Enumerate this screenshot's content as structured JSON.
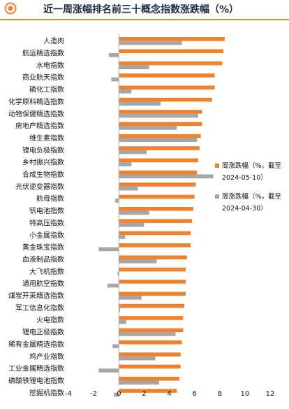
{
  "title": "近一周涨幅排名前三十概念指数涨跌幅（%）",
  "colors": {
    "accent": "#f0822d",
    "series1": "#f0822d",
    "series2": "#a6a6a6"
  },
  "icon": "target-circle-icon",
  "chart_data": {
    "type": "bar",
    "orientation": "horizontal",
    "categories": [
      "人造肉",
      "航运精选指数",
      "水电指数",
      "商业航天指数",
      "磷化工指数",
      "化学原料精选指数",
      "动物保健精选指数",
      "房地产精选指数",
      "维生素指数",
      "锂电负极指数",
      "乡村振兴指数",
      "合成生物指数",
      "光伏逆变器指数",
      "航母指数",
      "钒电池指数",
      "特高压指数",
      "小金属指数",
      "黄金珠宝指数",
      "血液制品指数",
      "大飞机指数",
      "通用航空指数",
      "煤炭开采精选指数",
      "军工信息化指数",
      "火电指数",
      "锂电正极指数",
      "稀有金属精选指数",
      "鸡产业指数",
      "工业金属精选指数",
      "磷酸铁锂电池指数",
      "挖掘机指数"
    ],
    "series": [
      {
        "name": "周涨跌幅（%，截至2024-05-10）",
        "values": [
          8.4,
          8.3,
          8.2,
          7.6,
          7.6,
          7.4,
          6.6,
          6.6,
          6.5,
          6.4,
          6.3,
          6.2,
          6.1,
          6.0,
          5.9,
          5.8,
          5.7,
          5.7,
          5.4,
          5.3,
          5.3,
          5.3,
          5.2,
          5.1,
          5.1,
          5.0,
          4.9,
          4.9,
          4.8,
          4.6
        ]
      },
      {
        "name": "周涨跌幅（%，截至2024-04-30）",
        "values": [
          5.0,
          -0.8,
          2.4,
          -0.6,
          1.0,
          3.3,
          6.3,
          4.6,
          6.2,
          2.2,
          1.0,
          7.5,
          1.5,
          -0.3,
          2.4,
          2.0,
          0.5,
          -1.6,
          3.0,
          -0.1,
          -0.9,
          1.8,
          0.1,
          0.6,
          4.5,
          -0.5,
          2.9,
          -1.6,
          3.2,
          -0.4
        ]
      }
    ],
    "x_ticks": [
      "-4",
      "-2",
      "0",
      "2",
      "4",
      "6",
      "8",
      "10",
      "12"
    ],
    "xlim": [
      -4,
      12
    ],
    "legend_position": "right",
    "grid": false
  }
}
